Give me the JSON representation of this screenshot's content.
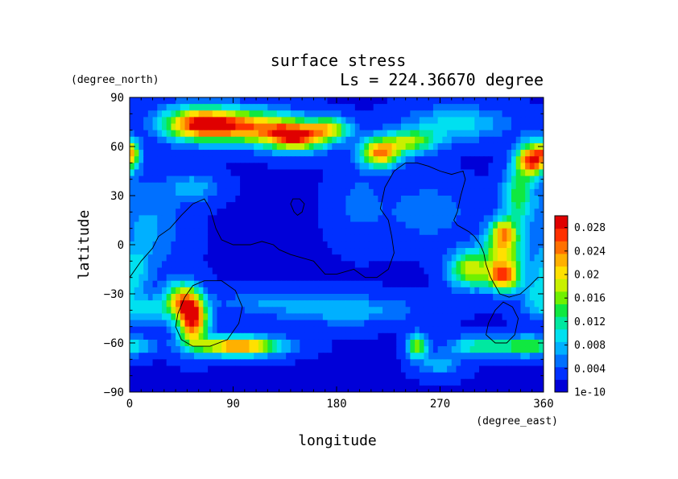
{
  "chart_data": {
    "type": "heatmap",
    "title": "surface stress",
    "subtitle": "Ls = 224.36670 degree",
    "xlabel": "longitude",
    "ylabel": "latitude",
    "x_unit_label": "(degree_east)",
    "y_unit_label": "(degree_north)",
    "xlim": [
      0,
      360
    ],
    "ylim": [
      -90,
      90
    ],
    "x_ticks": [
      "0",
      "90",
      "180",
      "270",
      "360"
    ],
    "y_ticks": [
      "90",
      "60",
      "30",
      "0",
      "−30",
      "−60",
      "−90"
    ],
    "colorbar": {
      "min": 0,
      "max": 0.03,
      "tick_labels": [
        "0.028",
        "0.024",
        "0.02",
        "0.016",
        "0.012",
        "0.008",
        "0.004",
        "1e-10"
      ],
      "tick_values": [
        0.028,
        0.024,
        0.02,
        0.016,
        0.012,
        0.008,
        0.004,
        0
      ],
      "colors": [
        "#0000d8",
        "#0030ff",
        "#0070ff",
        "#00b0ff",
        "#00e0f0",
        "#00e8a0",
        "#10e840",
        "#70f000",
        "#c8f000",
        "#ffe000",
        "#ffb000",
        "#ff7000",
        "#ff3000",
        "#e00000"
      ]
    },
    "background_value": 0.002,
    "anomalies": [
      {
        "lon": 60,
        "lat": 74,
        "slon": 22,
        "slat": 7,
        "amp": 0.024
      },
      {
        "lon": 105,
        "lat": 72,
        "slon": 28,
        "slat": 7,
        "amp": 0.02
      },
      {
        "lon": 145,
        "lat": 66,
        "slon": 18,
        "slat": 6,
        "amp": 0.024
      },
      {
        "lon": 175,
        "lat": 71,
        "slon": 12,
        "slat": 5,
        "amp": 0.014
      },
      {
        "lon": 218,
        "lat": 56,
        "slon": 12,
        "slat": 6,
        "amp": 0.022
      },
      {
        "lon": 245,
        "lat": 63,
        "slon": 16,
        "slat": 5,
        "amp": 0.014
      },
      {
        "lon": 285,
        "lat": 74,
        "slon": 30,
        "slat": 7,
        "amp": 0.008
      },
      {
        "lon": 350,
        "lat": 52,
        "slon": 9,
        "slat": 7,
        "amp": 0.026
      },
      {
        "lon": 338,
        "lat": 30,
        "slon": 9,
        "slat": 12,
        "amp": 0.012
      },
      {
        "lon": 2,
        "lat": 57,
        "slon": 5,
        "slat": 5,
        "amp": 0.012
      },
      {
        "lon": 55,
        "lat": -46,
        "slon": 9,
        "slat": 10,
        "amp": 0.026
      },
      {
        "lon": 45,
        "lat": -33,
        "slon": 10,
        "slat": 7,
        "amp": 0.016
      },
      {
        "lon": 95,
        "lat": -62,
        "slon": 25,
        "slat": 4,
        "amp": 0.024
      },
      {
        "lon": 20,
        "lat": -40,
        "slon": 20,
        "slat": 6,
        "amp": 0.007
      },
      {
        "lon": 295,
        "lat": -15,
        "slon": 12,
        "slat": 8,
        "amp": 0.016
      },
      {
        "lon": 325,
        "lat": -5,
        "slon": 12,
        "slat": 10,
        "amp": 0.016
      },
      {
        "lon": 325,
        "lat": -20,
        "slon": 10,
        "slat": 6,
        "amp": 0.02
      },
      {
        "lon": 325,
        "lat": 8,
        "slon": 8,
        "slat": 6,
        "amp": 0.014
      },
      {
        "lon": 345,
        "lat": -62,
        "slon": 20,
        "slat": 4,
        "amp": 0.014
      },
      {
        "lon": 300,
        "lat": -62,
        "slon": 15,
        "slat": 4,
        "amp": 0.009
      },
      {
        "lon": 250,
        "lat": -62,
        "slon": 6,
        "slat": 5,
        "amp": 0.016
      },
      {
        "lon": 270,
        "lat": -73,
        "slon": 12,
        "slat": 5,
        "amp": 0.006
      },
      {
        "lon": 55,
        "lat": 35,
        "slon": 15,
        "slat": 6,
        "amp": 0.006
      },
      {
        "lon": 15,
        "lat": 10,
        "slon": 20,
        "slat": 20,
        "amp": 0.005
      },
      {
        "lon": 260,
        "lat": 20,
        "slon": 25,
        "slat": 12,
        "amp": 0.004
      },
      {
        "lon": 190,
        "lat": -40,
        "slon": 40,
        "slat": 6,
        "amp": 0.006
      },
      {
        "lon": 120,
        "lat": -35,
        "slon": 30,
        "slat": 5,
        "amp": 0.004
      },
      {
        "lon": 200,
        "lat": 25,
        "slon": 15,
        "slat": 15,
        "amp": 0.003
      },
      {
        "lon": 355,
        "lat": -30,
        "slon": 10,
        "slat": 8,
        "amp": 0.006
      },
      {
        "lon": 5,
        "lat": -15,
        "slon": 8,
        "slat": 8,
        "amp": 0.006
      }
    ],
    "contours": [
      {
        "name": "western-continent",
        "closed": false,
        "points": [
          [
            0,
            -20
          ],
          [
            10,
            -10
          ],
          [
            20,
            -2
          ],
          [
            25,
            5
          ],
          [
            35,
            10
          ],
          [
            45,
            18
          ],
          [
            55,
            25
          ],
          [
            65,
            28
          ],
          [
            70,
            22
          ],
          [
            75,
            10
          ],
          [
            80,
            3
          ],
          [
            90,
            0
          ],
          [
            100,
            0
          ],
          [
            105,
            0
          ],
          [
            115,
            2
          ],
          [
            125,
            0
          ],
          [
            130,
            -3
          ],
          [
            140,
            -6
          ],
          [
            150,
            -8
          ],
          [
            160,
            -10
          ],
          [
            170,
            -18
          ],
          [
            180,
            -18
          ],
          [
            195,
            -15
          ],
          [
            205,
            -20
          ],
          [
            215,
            -20
          ],
          [
            225,
            -15
          ],
          [
            230,
            -5
          ],
          [
            228,
            5
          ],
          [
            225,
            15
          ],
          [
            218,
            22
          ],
          [
            222,
            35
          ],
          [
            230,
            45
          ],
          [
            240,
            50
          ],
          [
            250,
            50
          ],
          [
            260,
            48
          ],
          [
            270,
            45
          ],
          [
            280,
            43
          ],
          [
            290,
            45
          ],
          [
            292,
            40
          ],
          [
            288,
            30
          ],
          [
            285,
            20
          ],
          [
            282,
            15
          ],
          [
            285,
            12
          ],
          [
            290,
            10
          ],
          [
            295,
            8
          ],
          [
            300,
            5
          ],
          [
            305,
            0
          ],
          [
            308,
            -5
          ],
          [
            310,
            -12
          ],
          [
            314,
            -20
          ],
          [
            318,
            -25
          ],
          [
            322,
            -30
          ],
          [
            330,
            -32
          ],
          [
            340,
            -30
          ],
          [
            348,
            -25
          ],
          [
            355,
            -20
          ],
          [
            360,
            -20
          ]
        ]
      },
      {
        "name": "northern-patch",
        "closed": true,
        "points": [
          [
            143,
            20
          ],
          [
            140,
            25
          ],
          [
            142,
            28
          ],
          [
            148,
            28
          ],
          [
            152,
            25
          ],
          [
            150,
            20
          ],
          [
            146,
            18
          ]
        ]
      },
      {
        "name": "southern-basin-west",
        "closed": true,
        "points": [
          [
            65,
            -22
          ],
          [
            55,
            -25
          ],
          [
            48,
            -32
          ],
          [
            42,
            -42
          ],
          [
            40,
            -50
          ],
          [
            45,
            -58
          ],
          [
            55,
            -62
          ],
          [
            70,
            -62
          ],
          [
            85,
            -58
          ],
          [
            95,
            -48
          ],
          [
            98,
            -38
          ],
          [
            92,
            -28
          ],
          [
            80,
            -22
          ]
        ]
      },
      {
        "name": "southern-basin-east",
        "closed": true,
        "points": [
          [
            325,
            -35
          ],
          [
            318,
            -40
          ],
          [
            312,
            -48
          ],
          [
            310,
            -55
          ],
          [
            318,
            -60
          ],
          [
            328,
            -60
          ],
          [
            335,
            -55
          ],
          [
            338,
            -45
          ],
          [
            333,
            -38
          ]
        ]
      }
    ]
  }
}
